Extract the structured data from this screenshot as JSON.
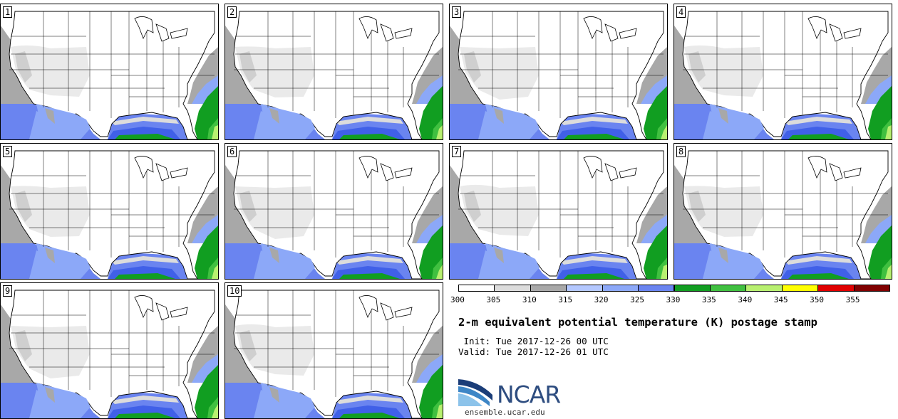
{
  "panels": [
    {
      "label": "1"
    },
    {
      "label": "2"
    },
    {
      "label": "3"
    },
    {
      "label": "4"
    },
    {
      "label": "5"
    },
    {
      "label": "6"
    },
    {
      "label": "7"
    },
    {
      "label": "8"
    },
    {
      "label": "9"
    },
    {
      "label": "10"
    }
  ],
  "colorbar": {
    "ticks": [
      "300",
      "305",
      "310",
      "315",
      "320",
      "325",
      "330",
      "335",
      "340",
      "345",
      "350",
      "355"
    ],
    "colors": [
      "#ffffff",
      "#dcdcdc",
      "#a8a8a8",
      "#b4c8ff",
      "#8ca8f8",
      "#6a84f0",
      "#119e21",
      "#40c040",
      "#b8f070",
      "#ffff00",
      "#e00000",
      "#800000"
    ]
  },
  "title": "2-m equivalent potential temperature (K) postage stamp",
  "init_line": " Init: Tue 2017-12-26 00 UTC",
  "valid_line": "Valid: Tue 2017-12-26 01 UTC",
  "logo": {
    "text": "NCAR",
    "color": "#2e4d80"
  },
  "site": "ensemble.ucar.edu"
}
